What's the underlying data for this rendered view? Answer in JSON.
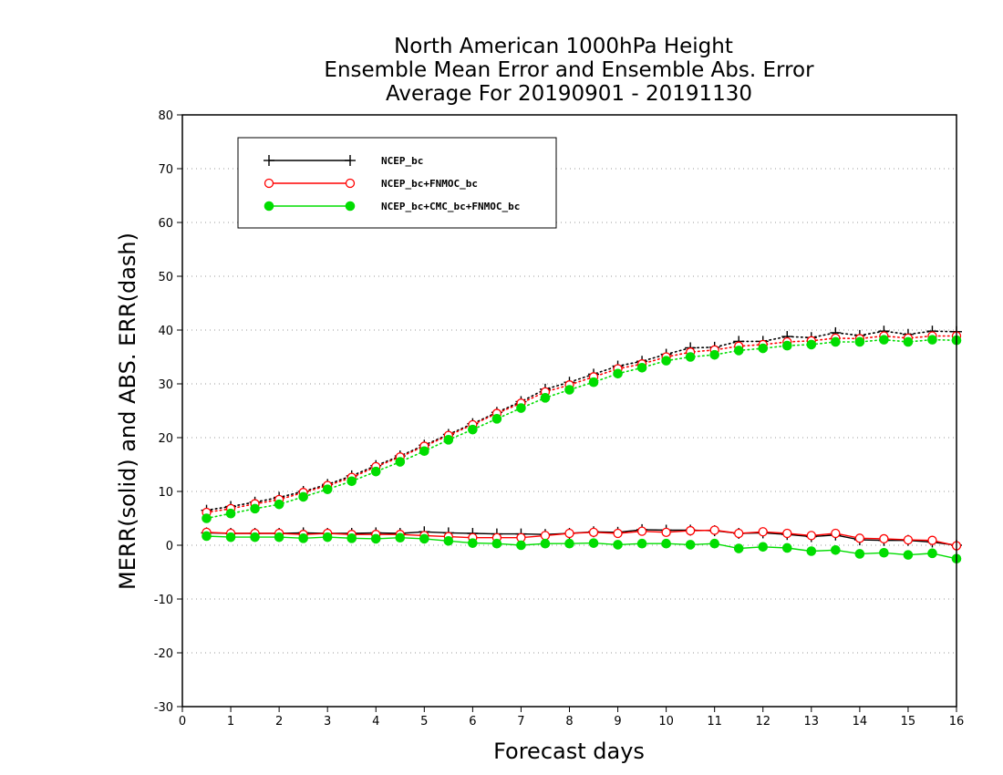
{
  "chart_data": {
    "type": "line",
    "title": [
      "North American 1000hPa Height",
      "Ensemble Mean Error and Ensemble Abs. Error",
      "Average For 20190901 - 20191130"
    ],
    "xlabel": "Forecast days",
    "ylabel": "MERR(solid) and ABS. ERR(dash)",
    "xlim": [
      0,
      16
    ],
    "ylim": [
      -30,
      80
    ],
    "xticks": [
      0,
      1,
      2,
      3,
      4,
      5,
      6,
      7,
      8,
      9,
      10,
      11,
      12,
      13,
      14,
      15,
      16
    ],
    "yticks": [
      -30,
      -20,
      -10,
      0,
      10,
      20,
      30,
      40,
      50,
      60,
      70,
      80
    ],
    "grid": "horizontal dotted",
    "legend_position": "top-left",
    "x": [
      0.5,
      1,
      1.5,
      2,
      2.5,
      3,
      3.5,
      4,
      4.5,
      5,
      5.5,
      6,
      6.5,
      7,
      7.5,
      8,
      8.5,
      9,
      9.5,
      10,
      10.5,
      11,
      11.5,
      12,
      12.5,
      13,
      13.5,
      14,
      14.5,
      15,
      15.5,
      16
    ],
    "series": [
      {
        "name": "NCEP_bc",
        "color": "#000000",
        "marker": "plus",
        "merr": [
          2.3,
          2.2,
          2.2,
          2.2,
          2.3,
          2.2,
          2.2,
          2.3,
          2.2,
          2.5,
          2.3,
          2.2,
          2.1,
          2.1,
          2.0,
          2.2,
          2.5,
          2.4,
          2.9,
          2.8,
          2.8,
          2.7,
          2.2,
          2.3,
          2.0,
          1.6,
          1.9,
          1.0,
          0.9,
          0.9,
          0.6,
          0.0
        ],
        "abs_err": [
          6.5,
          7.2,
          8.0,
          8.9,
          10.0,
          11.3,
          12.9,
          14.8,
          16.6,
          18.6,
          20.6,
          22.6,
          24.7,
          26.7,
          29.0,
          30.3,
          31.8,
          33.3,
          34.2,
          35.5,
          36.7,
          36.8,
          37.9,
          37.9,
          38.8,
          38.6,
          39.5,
          39.0,
          39.8,
          39.2,
          39.8,
          39.7
        ]
      },
      {
        "name": "NCEP_bc+FNMOC_bc",
        "color": "#ff0000",
        "marker": "open-circle",
        "merr": [
          2.4,
          2.2,
          2.2,
          2.2,
          2.0,
          2.2,
          2.0,
          2.0,
          2.0,
          1.8,
          1.6,
          1.4,
          1.4,
          1.4,
          1.8,
          2.2,
          2.4,
          2.2,
          2.6,
          2.4,
          2.7,
          2.8,
          2.2,
          2.5,
          2.2,
          1.8,
          2.2,
          1.3,
          1.2,
          1.0,
          0.9,
          -0.1
        ],
        "abs_err": [
          6.1,
          6.8,
          7.7,
          8.5,
          9.8,
          11.1,
          12.6,
          14.6,
          16.4,
          18.4,
          20.4,
          22.4,
          24.5,
          26.4,
          28.5,
          29.8,
          31.3,
          32.8,
          33.7,
          35.0,
          35.9,
          36.3,
          37.0,
          37.3,
          37.8,
          38.0,
          38.5,
          38.4,
          38.9,
          38.5,
          38.9,
          38.9
        ]
      },
      {
        "name": "NCEP_bc+CMC_bc+FNMOC_bc",
        "color": "#00dd00",
        "marker": "filled-circle",
        "merr": [
          1.7,
          1.5,
          1.5,
          1.5,
          1.3,
          1.5,
          1.3,
          1.2,
          1.4,
          1.2,
          0.8,
          0.4,
          0.3,
          0.0,
          0.3,
          0.3,
          0.4,
          0.1,
          0.3,
          0.3,
          0.1,
          0.3,
          -0.6,
          -0.3,
          -0.5,
          -1.1,
          -0.9,
          -1.6,
          -1.4,
          -1.8,
          -1.5,
          -2.5
        ],
        "abs_err": [
          5.0,
          5.9,
          6.8,
          7.6,
          9.0,
          10.4,
          11.9,
          13.7,
          15.5,
          17.5,
          19.6,
          21.5,
          23.5,
          25.5,
          27.4,
          28.9,
          30.3,
          31.9,
          33.0,
          34.3,
          35.0,
          35.4,
          36.2,
          36.6,
          37.1,
          37.3,
          37.8,
          37.8,
          38.2,
          37.8,
          38.2,
          38.1
        ]
      }
    ]
  }
}
